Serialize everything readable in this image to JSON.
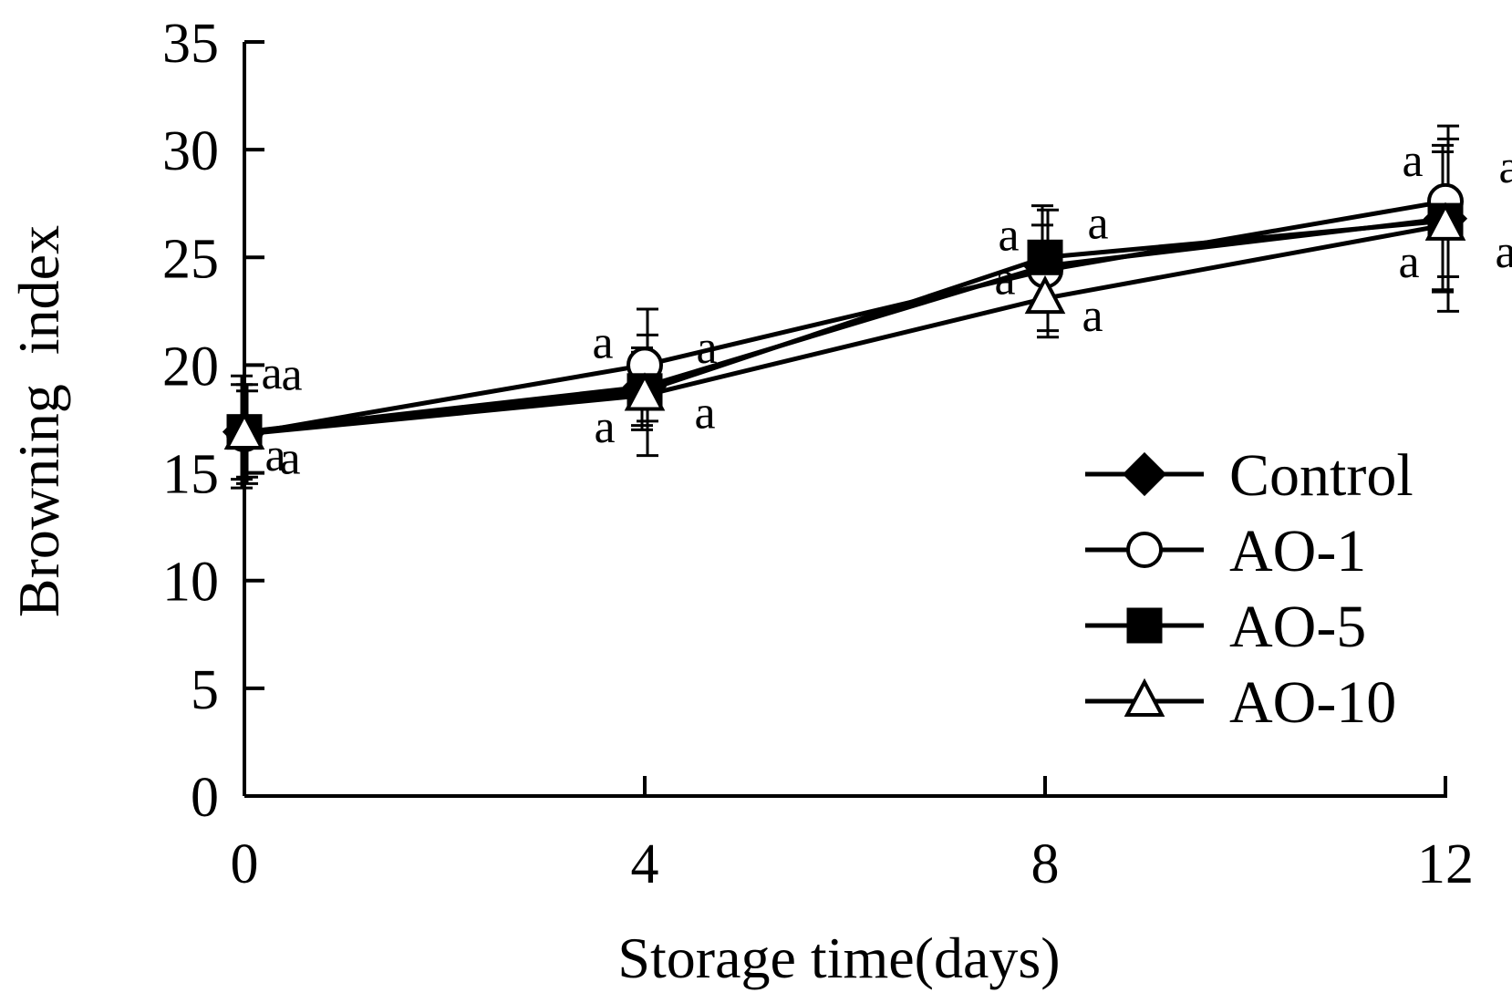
{
  "chart_data": {
    "type": "line",
    "xlabel": "Storage time(days)",
    "ylabel": "Browning  index",
    "x": [
      0,
      4,
      8,
      12
    ],
    "x_ticks": [
      "0",
      "4",
      "8",
      "12"
    ],
    "y_ticks": [
      "0",
      "5",
      "10",
      "15",
      "20",
      "25",
      "30",
      "35"
    ],
    "ylim": [
      0,
      35
    ],
    "grid": false,
    "legend_position": "bottom-right",
    "series": [
      {
        "name": "Control",
        "marker": "filled-diamond",
        "values": [
          16.9,
          19.0,
          24.6,
          26.8
        ],
        "error": [
          2.6,
          1.8,
          1.9,
          3.4
        ],
        "sig": [
          "a",
          "a",
          "a",
          "a"
        ]
      },
      {
        "name": "AO-1",
        "marker": "open-circle",
        "values": [
          16.8,
          20.0,
          24.4,
          27.6
        ],
        "error": [
          2.3,
          2.6,
          2.8,
          3.5
        ],
        "sig": [
          "a",
          "a",
          "a",
          "a"
        ]
      },
      {
        "name": "AO-5",
        "marker": "filled-square",
        "values": [
          16.9,
          18.8,
          25.0,
          26.7
        ],
        "error": [
          2.2,
          1.8,
          2.4,
          3.2
        ],
        "sig": [
          "a",
          "a",
          "a",
          "a"
        ]
      },
      {
        "name": "AO-10",
        "marker": "open-triangle",
        "values": [
          16.8,
          18.6,
          23.1,
          26.5
        ],
        "error": [
          2.0,
          2.8,
          1.8,
          4.0
        ],
        "sig": [
          "a",
          "a",
          "a",
          "a"
        ]
      }
    ]
  }
}
